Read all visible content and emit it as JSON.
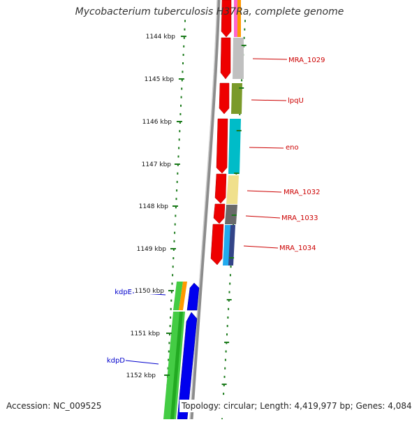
{
  "title": "Mycobacterium tuberculosis H37Ra, complete genome",
  "accession": "Accession: NC_009525",
  "topology": "Topology: circular; Length: 4,419,977 bp; Genes: 4,084",
  "colors": {
    "backbone": "#8c8c8c",
    "scale_ticks": "#1a7a1a",
    "gene_label_red": "#cc0000",
    "gene_label_blue": "#0000cc"
  },
  "scale": {
    "ticks": [
      {
        "label": "1144 kbp"
      },
      {
        "label": "1145 kbp"
      },
      {
        "label": "1146 kbp"
      },
      {
        "label": "1147 kbp"
      },
      {
        "label": "1148 kbp"
      },
      {
        "label": "1149 kbp"
      },
      {
        "label": "1150 kbp"
      },
      {
        "label": "1151 kbp"
      },
      {
        "label": "1152 kbp"
      }
    ]
  },
  "gene_labels_right": [
    {
      "text": "MRA_1029"
    },
    {
      "text": "lpqU"
    },
    {
      "text": "eno"
    },
    {
      "text": "MRA_1032"
    },
    {
      "text": "MRA_1033"
    },
    {
      "text": "MRA_1034"
    }
  ],
  "gene_labels_left": [
    {
      "text": "kdpE"
    },
    {
      "text": "kdpD"
    }
  ]
}
